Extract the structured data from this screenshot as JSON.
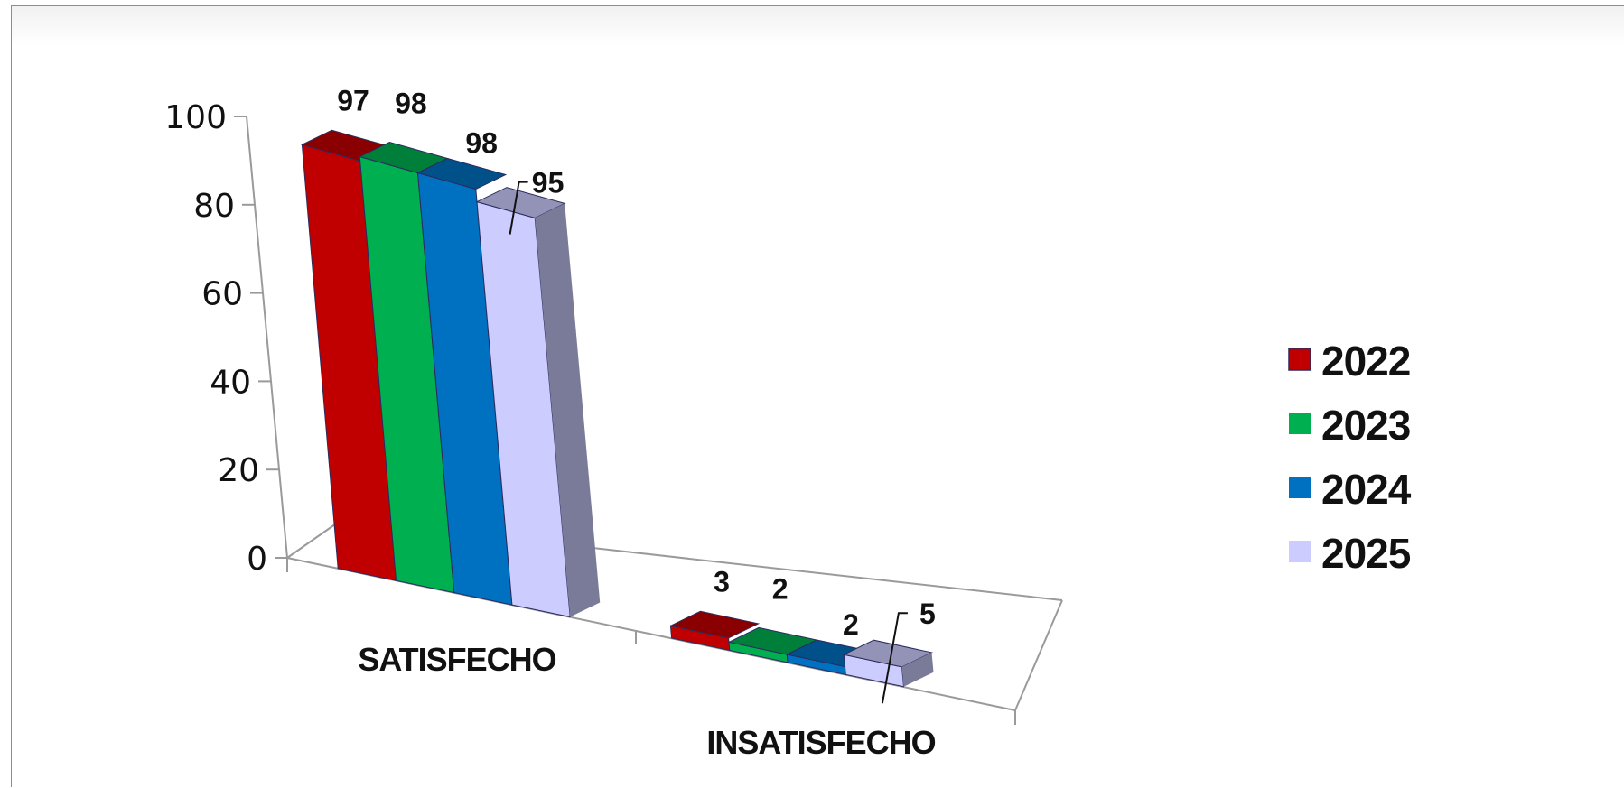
{
  "chart_data": {
    "type": "bar",
    "categories": [
      "SATISFECHO",
      "INSATISFECHO"
    ],
    "series": [
      {
        "name": "2022",
        "values": [
          97,
          3
        ],
        "color": "#C00000"
      },
      {
        "name": "2023",
        "values": [
          98,
          2
        ],
        "color": "#00B050"
      },
      {
        "name": "2024",
        "values": [
          98,
          2
        ],
        "color": "#0070C0"
      },
      {
        "name": "2025",
        "values": [
          95,
          5
        ],
        "color": "#CCCCFF"
      }
    ],
    "y_ticks": [
      "0",
      "20",
      "40",
      "60",
      "80",
      "100"
    ],
    "ylim": [
      0,
      100
    ],
    "grid": false,
    "legend": "right",
    "style": "3d-clustered-column"
  }
}
